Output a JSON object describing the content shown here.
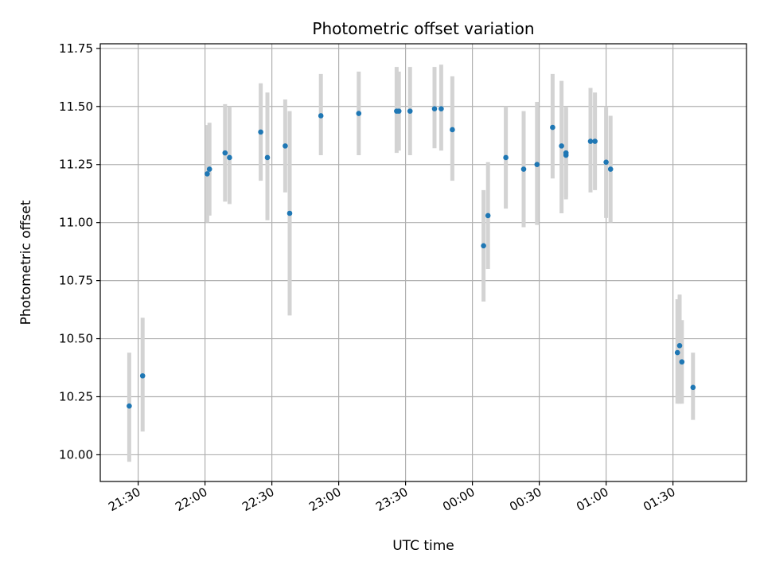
{
  "chart_data": {
    "type": "scatter",
    "title": "Photometric offset variation",
    "xlabel": "UTC time",
    "ylabel": "Photometric offset",
    "x_unit": "UTC time",
    "xlim": [
      "21:13",
      "02:03"
    ],
    "ylim": [
      9.885,
      11.77
    ],
    "x_ticks": [
      "21:30",
      "22:00",
      "22:30",
      "23:00",
      "23:30",
      "00:00",
      "00:30",
      "01:00",
      "01:30"
    ],
    "y_ticks": [
      10.0,
      10.25,
      10.5,
      10.75,
      11.0,
      11.25,
      11.5,
      11.75
    ],
    "y_tick_labels": [
      "10.00",
      "10.25",
      "10.50",
      "10.75",
      "11.00",
      "11.25",
      "11.50",
      "11.75"
    ],
    "grid": true,
    "colors": {
      "point": "#1f77b4",
      "errorbar": "#d3d3d3",
      "grid": "#b0b0b0",
      "axes": "#000000"
    },
    "points": [
      {
        "x": "21:26",
        "y": 10.21,
        "ylow": 9.97,
        "yhigh": 10.44
      },
      {
        "x": "21:32",
        "y": 10.34,
        "ylow": 10.1,
        "yhigh": 10.59
      },
      {
        "x": "22:01",
        "y": 11.21,
        "ylow": 11.0,
        "yhigh": 11.42
      },
      {
        "x": "22:02",
        "y": 11.23,
        "ylow": 11.03,
        "yhigh": 11.43
      },
      {
        "x": "22:09",
        "y": 11.3,
        "ylow": 11.09,
        "yhigh": 11.51
      },
      {
        "x": "22:11",
        "y": 11.28,
        "ylow": 11.08,
        "yhigh": 11.5
      },
      {
        "x": "22:25",
        "y": 11.39,
        "ylow": 11.18,
        "yhigh": 11.6
      },
      {
        "x": "22:28",
        "y": 11.28,
        "ylow": 11.01,
        "yhigh": 11.56
      },
      {
        "x": "22:36",
        "y": 11.33,
        "ylow": 11.13,
        "yhigh": 11.53
      },
      {
        "x": "22:38",
        "y": 11.04,
        "ylow": 10.6,
        "yhigh": 11.48
      },
      {
        "x": "22:52",
        "y": 11.46,
        "ylow": 11.29,
        "yhigh": 11.64
      },
      {
        "x": "23:09",
        "y": 11.47,
        "ylow": 11.29,
        "yhigh": 11.65
      },
      {
        "x": "23:26",
        "y": 11.48,
        "ylow": 11.3,
        "yhigh": 11.67
      },
      {
        "x": "23:27",
        "y": 11.48,
        "ylow": 11.31,
        "yhigh": 11.65
      },
      {
        "x": "23:32",
        "y": 11.48,
        "ylow": 11.29,
        "yhigh": 11.67
      },
      {
        "x": "23:43",
        "y": 11.49,
        "ylow": 11.32,
        "yhigh": 11.67
      },
      {
        "x": "23:46",
        "y": 11.49,
        "ylow": 11.31,
        "yhigh": 11.68
      },
      {
        "x": "23:51",
        "y": 11.4,
        "ylow": 11.18,
        "yhigh": 11.63
      },
      {
        "x": "00:05",
        "y": 10.9,
        "ylow": 10.66,
        "yhigh": 11.14
      },
      {
        "x": "00:07",
        "y": 11.03,
        "ylow": 10.8,
        "yhigh": 11.26
      },
      {
        "x": "00:15",
        "y": 11.28,
        "ylow": 11.06,
        "yhigh": 11.5
      },
      {
        "x": "00:23",
        "y": 11.23,
        "ylow": 10.98,
        "yhigh": 11.48
      },
      {
        "x": "00:29",
        "y": 11.25,
        "ylow": 10.99,
        "yhigh": 11.52
      },
      {
        "x": "00:36",
        "y": 11.41,
        "ylow": 11.19,
        "yhigh": 11.64
      },
      {
        "x": "00:40",
        "y": 11.33,
        "ylow": 11.04,
        "yhigh": 11.61
      },
      {
        "x": "00:42",
        "y": 11.29,
        "ylow": 11.1,
        "yhigh": 11.49
      },
      {
        "x": "00:42",
        "y": 11.3,
        "ylow": 11.11,
        "yhigh": 11.5
      },
      {
        "x": "00:53",
        "y": 11.35,
        "ylow": 11.13,
        "yhigh": 11.58
      },
      {
        "x": "00:55",
        "y": 11.35,
        "ylow": 11.14,
        "yhigh": 11.56
      },
      {
        "x": "01:00",
        "y": 11.26,
        "ylow": 11.02,
        "yhigh": 11.5
      },
      {
        "x": "01:02",
        "y": 11.23,
        "ylow": 11.0,
        "yhigh": 11.46
      },
      {
        "x": "01:32",
        "y": 10.44,
        "ylow": 10.22,
        "yhigh": 10.67
      },
      {
        "x": "01:33",
        "y": 10.47,
        "ylow": 10.22,
        "yhigh": 10.69
      },
      {
        "x": "01:34",
        "y": 10.4,
        "ylow": 10.22,
        "yhigh": 10.58
      },
      {
        "x": "01:39",
        "y": 10.29,
        "ylow": 10.15,
        "yhigh": 10.44
      }
    ]
  }
}
